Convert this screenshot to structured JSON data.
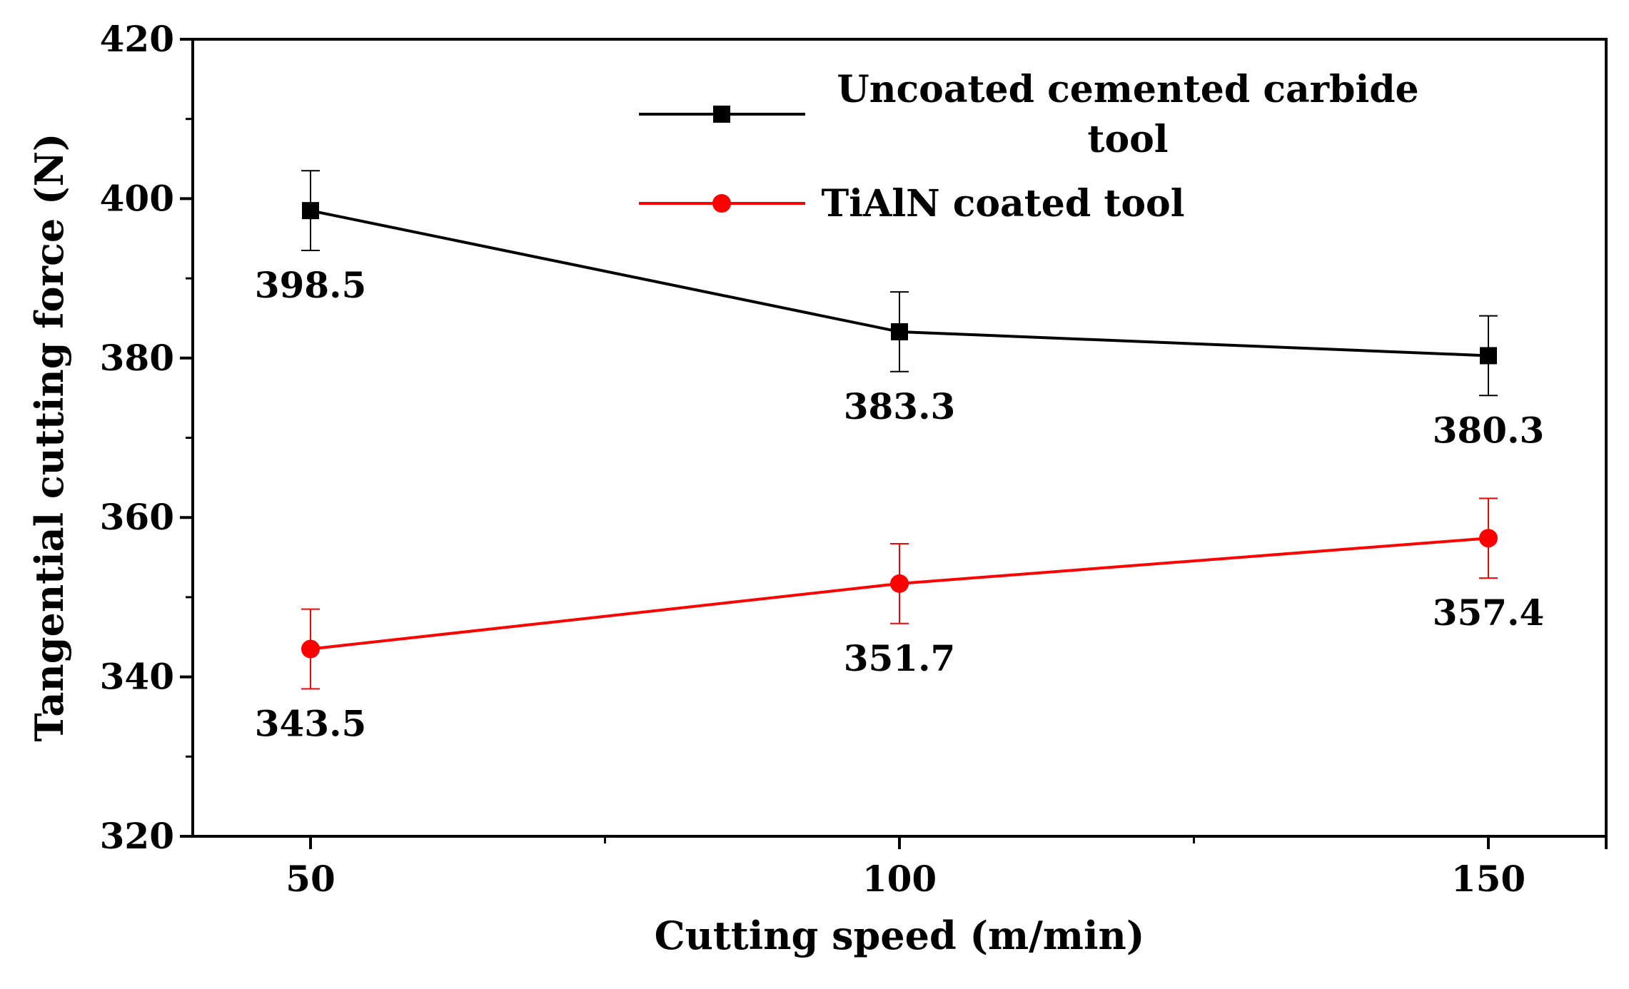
{
  "chart_data": {
    "type": "line",
    "title": "",
    "xlabel": "Cutting speed (m/min)",
    "ylabel": "Tangential cutting force (N)",
    "x": [
      50,
      100,
      150
    ],
    "xticks": [
      50,
      100,
      150
    ],
    "xlim": [
      40,
      160
    ],
    "ylim": [
      320,
      420
    ],
    "yticks": [
      320,
      340,
      360,
      380,
      400,
      420
    ],
    "legend_position": "top-center",
    "grid": false,
    "series": [
      {
        "name": "Uncoated cemented carbide tool",
        "legend_lines": [
          "Uncoated cemented carbide",
          "tool"
        ],
        "color": "#000000",
        "marker": "square",
        "values": [
          398.5,
          383.3,
          380.3
        ],
        "errors": [
          5,
          5,
          5
        ],
        "labels": [
          "398.5",
          "383.3",
          "380.3"
        ]
      },
      {
        "name": "TiAlN  coated tool",
        "legend_lines": [
          "TiAlN  coated tool"
        ],
        "color": "#ff0000",
        "marker": "circle",
        "values": [
          343.5,
          351.7,
          357.4
        ],
        "errors": [
          5,
          5,
          5
        ],
        "labels": [
          "343.5",
          "351.7",
          "357.4"
        ]
      }
    ]
  }
}
